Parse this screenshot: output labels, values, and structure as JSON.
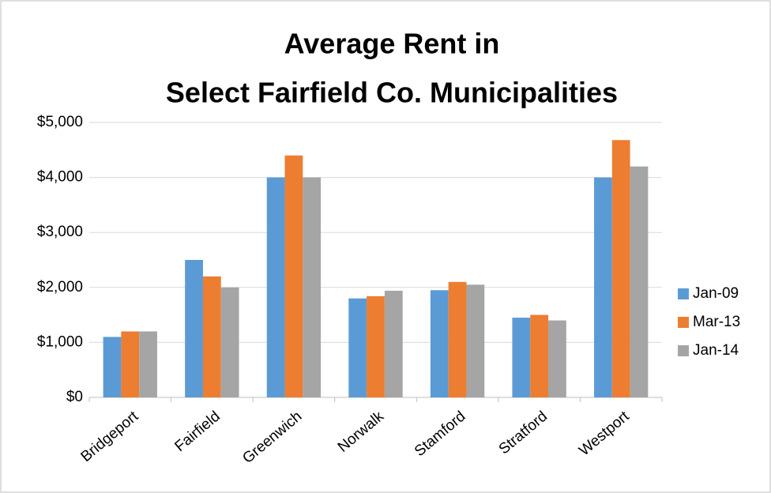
{
  "chart_data": {
    "type": "bar",
    "title": [
      "Average Rent in",
      "Select Fairfield Co. Municipalities"
    ],
    "categories": [
      "Bridgeport",
      "Fairfield",
      "Greenwich",
      "Norwalk",
      "Stamford",
      "Stratford",
      "Westport"
    ],
    "series": [
      {
        "name": "Jan-09",
        "color": "#5b9bd5",
        "values": [
          1100,
          2500,
          4000,
          1800,
          1950,
          1450,
          4000
        ]
      },
      {
        "name": "Mar-13",
        "color": "#ed7d31",
        "values": [
          1200,
          2200,
          4400,
          1840,
          2100,
          1500,
          4680
        ]
      },
      {
        "name": "Jan-14",
        "color": "#a5a5a5",
        "values": [
          1200,
          2000,
          4000,
          1940,
          2050,
          1400,
          4200
        ]
      }
    ],
    "ylim": [
      0,
      5000
    ],
    "yticks": [
      {
        "value": 0,
        "label": "$0"
      },
      {
        "value": 1000,
        "label": "$1,000"
      },
      {
        "value": 2000,
        "label": "$2,000"
      },
      {
        "value": 3000,
        "label": "$3,000"
      },
      {
        "value": 4000,
        "label": "$4,000"
      },
      {
        "value": 5000,
        "label": "$5,000"
      }
    ],
    "grid": true,
    "legend": "right"
  }
}
